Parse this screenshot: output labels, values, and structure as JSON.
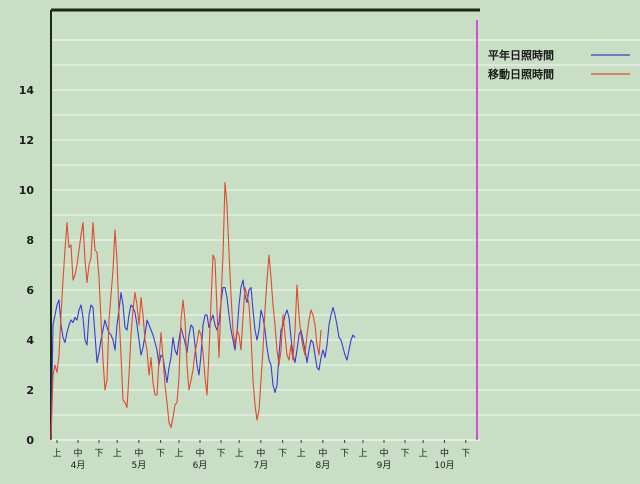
{
  "chart_data": {
    "type": "line",
    "title": "",
    "xlabel": "",
    "ylabel": "",
    "ylim": [
      0,
      16
    ],
    "yticks": [
      0,
      2,
      4,
      6,
      8,
      10,
      12,
      14
    ],
    "grid": true,
    "legend_position": "top-right",
    "x_range": [
      0,
      423
    ],
    "months": [
      {
        "label": "4月",
        "start": 0
      },
      {
        "label": "5月",
        "start": 60
      },
      {
        "label": "6月",
        "start": 122
      },
      {
        "label": "7月",
        "start": 182
      },
      {
        "label": "8月",
        "start": 244
      },
      {
        "label": "9月",
        "start": 306
      },
      {
        "label": "10月",
        "start": 366
      }
    ],
    "period_labels": [
      "上",
      "中",
      "下"
    ],
    "series": [
      {
        "name": "平年日照時間",
        "color": "#3a3ad6",
        "points": [
          [
            0,
            0
          ],
          [
            2,
            4.6
          ],
          [
            4,
            5.0
          ],
          [
            6,
            5.4
          ],
          [
            8,
            5.6
          ],
          [
            10,
            4.6
          ],
          [
            12,
            4.1
          ],
          [
            14,
            3.9
          ],
          [
            16,
            4.3
          ],
          [
            18,
            4.6
          ],
          [
            20,
            4.8
          ],
          [
            22,
            4.7
          ],
          [
            24,
            4.9
          ],
          [
            26,
            4.8
          ],
          [
            28,
            5.2
          ],
          [
            30,
            5.4
          ],
          [
            32,
            4.9
          ],
          [
            34,
            4.0
          ],
          [
            36,
            3.8
          ],
          [
            38,
            5.0
          ],
          [
            40,
            5.4
          ],
          [
            42,
            5.3
          ],
          [
            44,
            4.2
          ],
          [
            46,
            3.1
          ],
          [
            48,
            3.5
          ],
          [
            50,
            4.0
          ],
          [
            52,
            4.4
          ],
          [
            54,
            4.8
          ],
          [
            56,
            4.5
          ],
          [
            58,
            4.3
          ],
          [
            60,
            4.2
          ],
          [
            62,
            4.0
          ],
          [
            64,
            3.6
          ],
          [
            66,
            4.6
          ],
          [
            68,
            5.2
          ],
          [
            70,
            5.9
          ],
          [
            72,
            5.4
          ],
          [
            74,
            4.5
          ],
          [
            76,
            4.4
          ],
          [
            78,
            5.0
          ],
          [
            80,
            5.4
          ],
          [
            82,
            5.3
          ],
          [
            84,
            5.1
          ],
          [
            86,
            4.6
          ],
          [
            88,
            4.0
          ],
          [
            90,
            3.4
          ],
          [
            92,
            3.7
          ],
          [
            94,
            4.2
          ],
          [
            96,
            4.8
          ],
          [
            98,
            4.6
          ],
          [
            100,
            4.4
          ],
          [
            102,
            4.2
          ],
          [
            104,
            3.9
          ],
          [
            106,
            3.6
          ],
          [
            108,
            3.0
          ],
          [
            110,
            3.4
          ],
          [
            112,
            3.3
          ],
          [
            114,
            2.8
          ],
          [
            116,
            2.3
          ],
          [
            118,
            2.9
          ],
          [
            120,
            3.3
          ],
          [
            122,
            4.1
          ],
          [
            124,
            3.6
          ],
          [
            126,
            3.4
          ],
          [
            128,
            4.0
          ],
          [
            130,
            4.5
          ],
          [
            132,
            4.2
          ],
          [
            134,
            3.9
          ],
          [
            136,
            3.5
          ],
          [
            138,
            4.2
          ],
          [
            140,
            4.6
          ],
          [
            142,
            4.5
          ],
          [
            144,
            3.8
          ],
          [
            146,
            3.0
          ],
          [
            148,
            2.6
          ],
          [
            150,
            3.4
          ],
          [
            152,
            4.6
          ],
          [
            154,
            5.0
          ],
          [
            156,
            5.0
          ],
          [
            158,
            4.5
          ],
          [
            160,
            4.8
          ],
          [
            162,
            5.0
          ],
          [
            164,
            4.6
          ],
          [
            166,
            4.4
          ],
          [
            168,
            4.7
          ],
          [
            170,
            5.5
          ],
          [
            172,
            6.1
          ],
          [
            174,
            6.1
          ],
          [
            176,
            5.7
          ],
          [
            178,
            5.0
          ],
          [
            180,
            4.4
          ],
          [
            182,
            4.0
          ],
          [
            184,
            3.6
          ],
          [
            186,
            4.3
          ],
          [
            188,
            5.4
          ],
          [
            190,
            6.1
          ],
          [
            192,
            6.4
          ],
          [
            194,
            5.8
          ],
          [
            196,
            5.5
          ],
          [
            198,
            6.0
          ],
          [
            200,
            6.1
          ],
          [
            202,
            5.2
          ],
          [
            204,
            4.4
          ],
          [
            206,
            4.0
          ],
          [
            208,
            4.4
          ],
          [
            210,
            5.2
          ],
          [
            212,
            4.9
          ],
          [
            214,
            4.4
          ],
          [
            216,
            3.7
          ],
          [
            218,
            3.2
          ],
          [
            220,
            3.0
          ],
          [
            222,
            2.2
          ],
          [
            224,
            1.9
          ],
          [
            226,
            2.2
          ],
          [
            228,
            3.4
          ],
          [
            230,
            4.4
          ],
          [
            232,
            4.6
          ],
          [
            234,
            5.0
          ],
          [
            236,
            5.2
          ],
          [
            238,
            4.9
          ],
          [
            240,
            4.1
          ],
          [
            242,
            3.4
          ],
          [
            244,
            3.1
          ],
          [
            246,
            3.6
          ],
          [
            248,
            4.2
          ],
          [
            250,
            4.4
          ],
          [
            252,
            4.0
          ],
          [
            254,
            3.6
          ],
          [
            256,
            3.1
          ],
          [
            258,
            3.6
          ],
          [
            260,
            4.0
          ],
          [
            262,
            3.9
          ],
          [
            264,
            3.4
          ],
          [
            266,
            2.9
          ],
          [
            268,
            2.8
          ],
          [
            270,
            3.3
          ],
          [
            272,
            3.6
          ],
          [
            274,
            3.3
          ],
          [
            276,
            3.8
          ],
          [
            278,
            4.6
          ],
          [
            280,
            5.0
          ],
          [
            282,
            5.3
          ],
          [
            284,
            5.0
          ],
          [
            286,
            4.6
          ],
          [
            288,
            4.1
          ],
          [
            290,
            4.0
          ],
          [
            292,
            3.7
          ],
          [
            294,
            3.4
          ],
          [
            296,
            3.2
          ],
          [
            298,
            3.6
          ],
          [
            300,
            4.0
          ],
          [
            302,
            4.2
          ],
          [
            304,
            4.1
          ]
        ]
      },
      {
        "name": "移動日照時間",
        "color": "#e04a2e",
        "points": [
          [
            0,
            0
          ],
          [
            2,
            2.6
          ],
          [
            4,
            3.0
          ],
          [
            6,
            2.7
          ],
          [
            8,
            3.4
          ],
          [
            10,
            5.0
          ],
          [
            12,
            6.4
          ],
          [
            14,
            7.6
          ],
          [
            16,
            8.7
          ],
          [
            18,
            7.7
          ],
          [
            20,
            7.8
          ],
          [
            22,
            6.4
          ],
          [
            24,
            6.6
          ],
          [
            26,
            7.0
          ],
          [
            28,
            7.6
          ],
          [
            30,
            8.2
          ],
          [
            32,
            8.7
          ],
          [
            34,
            7.2
          ],
          [
            36,
            6.3
          ],
          [
            38,
            7.0
          ],
          [
            40,
            7.3
          ],
          [
            42,
            8.7
          ],
          [
            44,
            7.6
          ],
          [
            46,
            7.5
          ],
          [
            48,
            6.5
          ],
          [
            50,
            4.8
          ],
          [
            52,
            3.2
          ],
          [
            54,
            2.0
          ],
          [
            56,
            2.4
          ],
          [
            58,
            4.8
          ],
          [
            60,
            5.8
          ],
          [
            62,
            6.8
          ],
          [
            64,
            8.4
          ],
          [
            66,
            7.2
          ],
          [
            68,
            5.0
          ],
          [
            70,
            3.4
          ],
          [
            72,
            1.6
          ],
          [
            74,
            1.5
          ],
          [
            76,
            1.3
          ],
          [
            78,
            2.6
          ],
          [
            80,
            4.2
          ],
          [
            82,
            5.2
          ],
          [
            84,
            5.9
          ],
          [
            86,
            5.4
          ],
          [
            88,
            4.6
          ],
          [
            90,
            5.7
          ],
          [
            92,
            5.0
          ],
          [
            94,
            4.0
          ],
          [
            96,
            3.6
          ],
          [
            98,
            2.6
          ],
          [
            100,
            3.3
          ],
          [
            102,
            2.3
          ],
          [
            104,
            1.8
          ],
          [
            106,
            1.8
          ],
          [
            108,
            3.2
          ],
          [
            110,
            4.3
          ],
          [
            112,
            3.3
          ],
          [
            114,
            2.2
          ],
          [
            116,
            1.5
          ],
          [
            118,
            0.7
          ],
          [
            120,
            0.5
          ],
          [
            122,
            0.9
          ],
          [
            124,
            1.4
          ],
          [
            126,
            1.5
          ],
          [
            128,
            2.5
          ],
          [
            130,
            4.8
          ],
          [
            132,
            5.6
          ],
          [
            134,
            4.8
          ],
          [
            136,
            3.0
          ],
          [
            138,
            2.0
          ],
          [
            140,
            2.4
          ],
          [
            142,
            2.8
          ],
          [
            144,
            3.5
          ],
          [
            146,
            3.9
          ],
          [
            148,
            4.4
          ],
          [
            150,
            4.2
          ],
          [
            152,
            3.5
          ],
          [
            154,
            2.5
          ],
          [
            156,
            1.8
          ],
          [
            158,
            3.5
          ],
          [
            160,
            5.5
          ],
          [
            162,
            7.4
          ],
          [
            164,
            7.2
          ],
          [
            166,
            5.2
          ],
          [
            168,
            3.3
          ],
          [
            170,
            5.6
          ],
          [
            172,
            7.4
          ],
          [
            174,
            10.3
          ],
          [
            176,
            9.4
          ],
          [
            178,
            7.5
          ],
          [
            180,
            5.8
          ],
          [
            182,
            4.4
          ],
          [
            184,
            3.8
          ],
          [
            186,
            4.4
          ],
          [
            188,
            4.2
          ],
          [
            190,
            3.6
          ],
          [
            192,
            4.9
          ],
          [
            194,
            6.1
          ],
          [
            196,
            5.8
          ],
          [
            198,
            5.4
          ],
          [
            200,
            4.2
          ],
          [
            202,
            2.4
          ],
          [
            204,
            1.4
          ],
          [
            206,
            0.8
          ],
          [
            208,
            1.2
          ],
          [
            210,
            2.4
          ],
          [
            212,
            3.6
          ],
          [
            214,
            5.2
          ],
          [
            216,
            6.4
          ],
          [
            218,
            7.4
          ],
          [
            220,
            6.5
          ],
          [
            222,
            5.4
          ],
          [
            224,
            4.6
          ],
          [
            226,
            3.6
          ],
          [
            228,
            3.0
          ],
          [
            230,
            3.6
          ],
          [
            232,
            5.0
          ],
          [
            234,
            4.2
          ],
          [
            236,
            3.4
          ],
          [
            238,
            3.2
          ],
          [
            240,
            3.8
          ],
          [
            242,
            3.2
          ],
          [
            244,
            4.4
          ],
          [
            246,
            6.2
          ],
          [
            248,
            5.0
          ],
          [
            250,
            4.2
          ],
          [
            252,
            3.7
          ],
          [
            254,
            3.4
          ],
          [
            256,
            4.2
          ],
          [
            258,
            4.8
          ],
          [
            260,
            5.2
          ],
          [
            262,
            5.0
          ],
          [
            264,
            4.6
          ],
          [
            266,
            3.8
          ],
          [
            268,
            3.4
          ],
          [
            270,
            4.4
          ]
        ]
      }
    ]
  }
}
